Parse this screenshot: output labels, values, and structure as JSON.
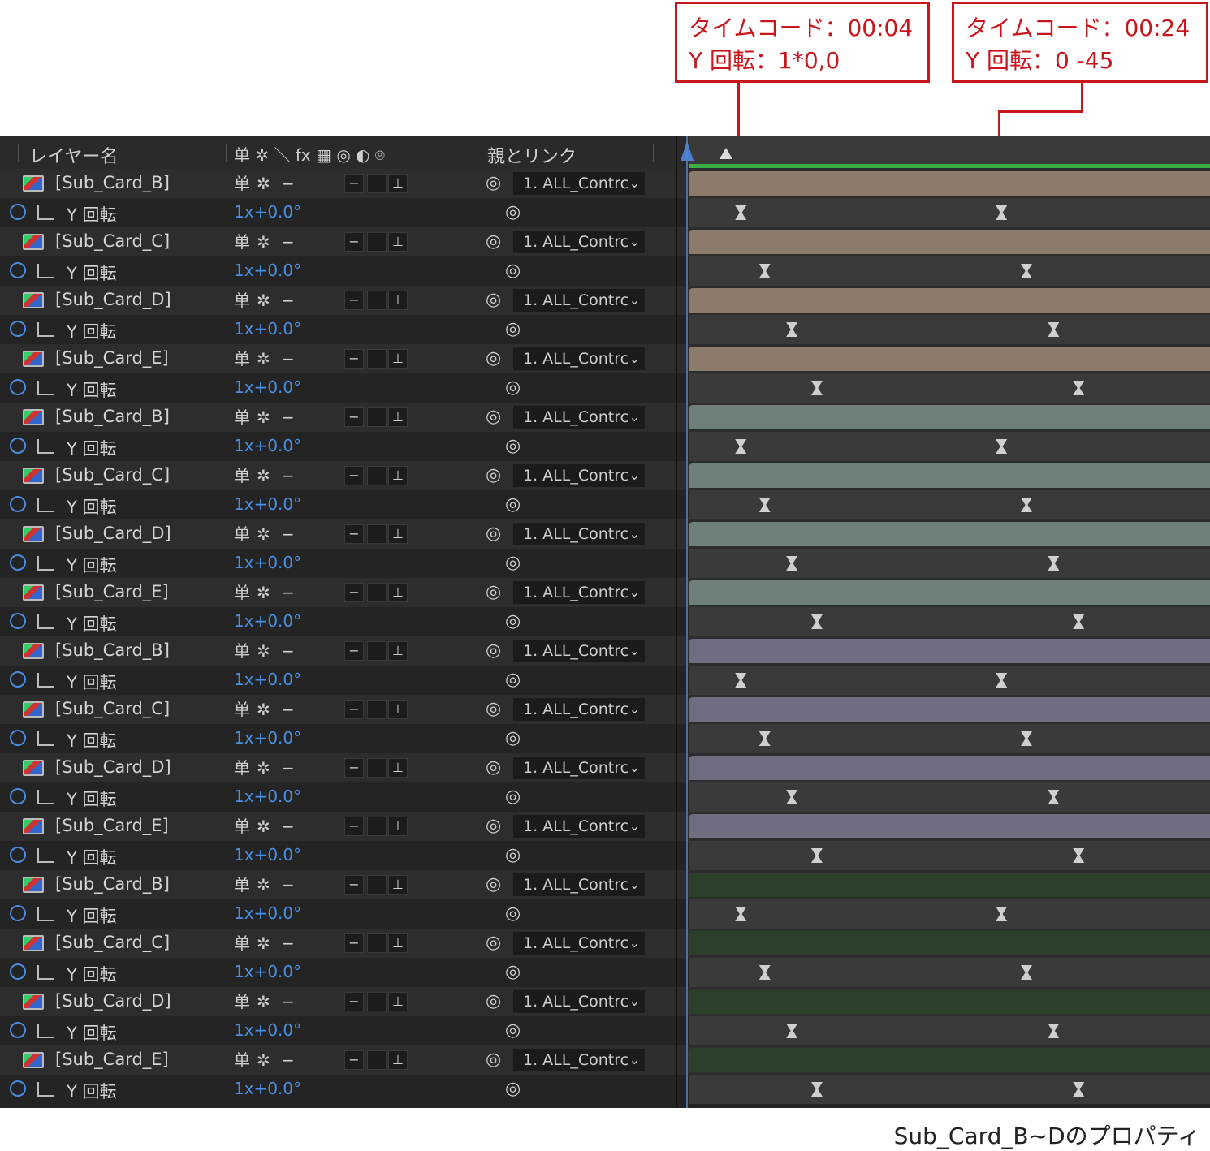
{
  "callouts": [
    {
      "line1": "タイムコード：00:04",
      "line2": "Y 回転：1*0,0"
    },
    {
      "line1": "タイムコード：00:24",
      "line2": "Y 回転：0 -45"
    }
  ],
  "header": {
    "layer_name": "レイヤー名",
    "switches": "单 ✲ ＼ fx ▦ ◎ ◐ ⌾",
    "parent_link": "親とリンク"
  },
  "colors": {
    "group_1_bar": "#8c7a6a",
    "group_2_bar": "#6f7f7c",
    "group_3_bar": "#6e6e80",
    "group_4_bar": "#2c3f2b",
    "accent_red": "#c8161d",
    "stopwatch_blue": "#4a8be0"
  },
  "property": {
    "name": "Y 回転",
    "value": "1x+0.0°"
  },
  "parent": {
    "label": "1. ALL_Contrc"
  },
  "icons": {
    "switch_shy": "单",
    "switch_collapse": "✲",
    "switch_quality": "−",
    "box_glyph": "−",
    "box_3d": "⊥",
    "spiral": "◎",
    "chevron": "⌄"
  },
  "groups": [
    {
      "color": "#8c7a6a",
      "layers": [
        {
          "name": "[Sub_Card_B]",
          "kf": [
            0.1,
            0.6
          ]
        },
        {
          "name": "[Sub_Card_C]",
          "kf": [
            0.146,
            0.648
          ]
        },
        {
          "name": "[Sub_Card_D]",
          "kf": [
            0.198,
            0.7
          ]
        },
        {
          "name": "[Sub_Card_E]",
          "kf": [
            0.246,
            0.748
          ]
        }
      ]
    },
    {
      "color": "#6f7f7c",
      "layers": [
        {
          "name": "[Sub_Card_B]",
          "kf": [
            0.1,
            0.6
          ]
        },
        {
          "name": "[Sub_Card_C]",
          "kf": [
            0.146,
            0.648
          ]
        },
        {
          "name": "[Sub_Card_D]",
          "kf": [
            0.198,
            0.7
          ]
        },
        {
          "name": "[Sub_Card_E]",
          "kf": [
            0.246,
            0.748
          ]
        }
      ]
    },
    {
      "color": "#6e6e80",
      "layers": [
        {
          "name": "[Sub_Card_B]",
          "kf": [
            0.1,
            0.6
          ]
        },
        {
          "name": "[Sub_Card_C]",
          "kf": [
            0.146,
            0.648
          ]
        },
        {
          "name": "[Sub_Card_D]",
          "kf": [
            0.198,
            0.7
          ]
        },
        {
          "name": "[Sub_Card_E]",
          "kf": [
            0.246,
            0.748
          ]
        }
      ]
    },
    {
      "color": "#2c3f2b",
      "layers": [
        {
          "name": "[Sub_Card_B]",
          "kf": [
            0.1,
            0.6
          ]
        },
        {
          "name": "[Sub_Card_C]",
          "kf": [
            0.146,
            0.648
          ]
        },
        {
          "name": "[Sub_Card_D]",
          "kf": [
            0.198,
            0.7
          ]
        },
        {
          "name": "[Sub_Card_E]",
          "kf": [
            0.246,
            0.748
          ]
        }
      ]
    }
  ],
  "caption": "Sub_Card_B~Dのプロパティ"
}
